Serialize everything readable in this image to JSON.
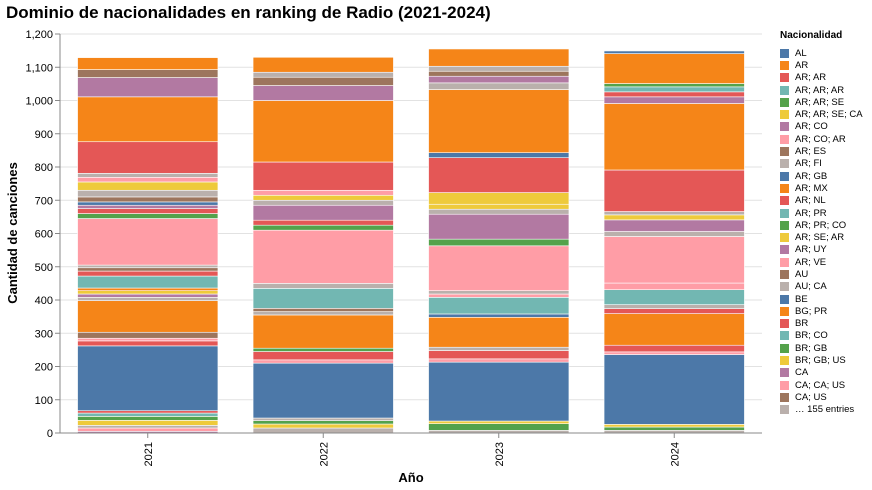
{
  "chart_data": {
    "type": "bar",
    "stacked": true,
    "title": "Dominio de nacionalidades en ranking de Radio (2021-2024)",
    "xlabel": "Año",
    "ylabel": "Cantidad de canciones",
    "ylim": [
      0,
      1200
    ],
    "yticks": [
      "0",
      "100",
      "200",
      "300",
      "400",
      "500",
      "600",
      "700",
      "800",
      "900",
      "1,000",
      "1,100",
      "1,200"
    ],
    "categories": [
      "2021",
      "2022",
      "2023",
      "2024"
    ],
    "grid": true,
    "legend": {
      "title": "Nacionalidad",
      "position": "right",
      "entries": [
        {
          "label": "AL",
          "color": "#4c78a8"
        },
        {
          "label": "AR",
          "color": "#f58518"
        },
        {
          "label": "AR; AR",
          "color": "#e45756"
        },
        {
          "label": "AR; AR; AR",
          "color": "#72b7b2"
        },
        {
          "label": "AR; AR; SE",
          "color": "#54a24b"
        },
        {
          "label": "AR; AR; SE; CA",
          "color": "#eeca3b"
        },
        {
          "label": "AR; CO",
          "color": "#b279a2"
        },
        {
          "label": "AR; CO; AR",
          "color": "#ff9da6"
        },
        {
          "label": "AR; ES",
          "color": "#9d755d"
        },
        {
          "label": "AR; FI",
          "color": "#bab0ac"
        },
        {
          "label": "AR; GB",
          "color": "#4c78a8"
        },
        {
          "label": "AR; MX",
          "color": "#f58518"
        },
        {
          "label": "AR; NL",
          "color": "#e45756"
        },
        {
          "label": "AR; PR",
          "color": "#72b7b2"
        },
        {
          "label": "AR; PR; CO",
          "color": "#54a24b"
        },
        {
          "label": "AR; SE; AR",
          "color": "#eeca3b"
        },
        {
          "label": "AR; UY",
          "color": "#b279a2"
        },
        {
          "label": "AR; VE",
          "color": "#ff9da6"
        },
        {
          "label": "AU",
          "color": "#9d755d"
        },
        {
          "label": "AU; CA",
          "color": "#bab0ac"
        },
        {
          "label": "BE",
          "color": "#4c78a8"
        },
        {
          "label": "BG; PR",
          "color": "#f58518"
        },
        {
          "label": "BR",
          "color": "#e45756"
        },
        {
          "label": "BR; CO",
          "color": "#72b7b2"
        },
        {
          "label": "BR; GB",
          "color": "#54a24b"
        },
        {
          "label": "BR; GB; US",
          "color": "#eeca3b"
        },
        {
          "label": "CA",
          "color": "#b279a2"
        },
        {
          "label": "CA; CA; US",
          "color": "#ff9da6"
        },
        {
          "label": "CA; US",
          "color": "#9d755d"
        },
        {
          "label": "… 155 entries",
          "color": "#bab0ac"
        }
      ]
    },
    "series_values_note": "stack segments bottom to top, values in songs",
    "stacks": [
      {
        "category": "2021",
        "segments": [
          {
            "value": 5,
            "color": "#b279a2"
          },
          {
            "value": 10,
            "color": "#ff9da6"
          },
          {
            "value": 8,
            "color": "#bab0ac"
          },
          {
            "value": 15,
            "color": "#eeca3b"
          },
          {
            "value": 12,
            "color": "#54a24b"
          },
          {
            "value": 10,
            "color": "#72b7b2"
          },
          {
            "value": 7,
            "color": "#e45756"
          },
          {
            "value": 195,
            "color": "#4c78a8"
          },
          {
            "value": 15,
            "color": "#e45756"
          },
          {
            "value": 8,
            "color": "#ff9da6"
          },
          {
            "value": 18,
            "color": "#9d755d"
          },
          {
            "value": 95,
            "color": "#f58518"
          },
          {
            "value": 10,
            "color": "#bab0ac"
          },
          {
            "value": 10,
            "color": "#b279a2"
          },
          {
            "value": 10,
            "color": "#eeca3b"
          },
          {
            "value": 8,
            "color": "#f58518"
          },
          {
            "value": 36,
            "color": "#72b7b2"
          },
          {
            "value": 15,
            "color": "#e45756"
          },
          {
            "value": 10,
            "color": "#9d755d"
          },
          {
            "value": 8,
            "color": "#bab0ac"
          },
          {
            "value": 140,
            "color": "#ff9da6"
          },
          {
            "value": 15,
            "color": "#54a24b"
          },
          {
            "value": 15,
            "color": "#e45756"
          },
          {
            "value": 10,
            "color": "#b279a2"
          },
          {
            "value": 10,
            "color": "#4c78a8"
          },
          {
            "value": 15,
            "color": "#9d755d"
          },
          {
            "value": 20,
            "color": "#bab0ac"
          },
          {
            "value": 25,
            "color": "#eeca3b"
          },
          {
            "value": 14,
            "color": "#ff9da6"
          },
          {
            "value": 12,
            "color": "#bab0ac"
          },
          {
            "value": 95,
            "color": "#e45756"
          },
          {
            "value": 135,
            "color": "#f58518"
          },
          {
            "value": 58,
            "color": "#b279a2"
          },
          {
            "value": 24,
            "color": "#9d755d"
          },
          {
            "value": 36,
            "color": "#f58518"
          }
        ]
      },
      {
        "category": "2022",
        "segments": [
          {
            "value": 15,
            "color": "#bab0ac"
          },
          {
            "value": 12,
            "color": "#eeca3b"
          },
          {
            "value": 10,
            "color": "#54a24b"
          },
          {
            "value": 8,
            "color": "#bab0ac"
          },
          {
            "value": 165,
            "color": "#4c78a8"
          },
          {
            "value": 10,
            "color": "#ff9da6"
          },
          {
            "value": 25,
            "color": "#e45756"
          },
          {
            "value": 10,
            "color": "#54a24b"
          },
          {
            "value": 100,
            "color": "#f58518"
          },
          {
            "value": 10,
            "color": "#bab0ac"
          },
          {
            "value": 10,
            "color": "#9d755d"
          },
          {
            "value": 60,
            "color": "#72b7b2"
          },
          {
            "value": 15,
            "color": "#bab0ac"
          },
          {
            "value": 160,
            "color": "#ff9da6"
          },
          {
            "value": 15,
            "color": "#54a24b"
          },
          {
            "value": 15,
            "color": "#e45756"
          },
          {
            "value": 45,
            "color": "#b279a2"
          },
          {
            "value": 15,
            "color": "#bab0ac"
          },
          {
            "value": 15,
            "color": "#eeca3b"
          },
          {
            "value": 15,
            "color": "#ff9da6"
          },
          {
            "value": 85,
            "color": "#e45756"
          },
          {
            "value": 185,
            "color": "#f58518"
          },
          {
            "value": 45,
            "color": "#b279a2"
          },
          {
            "value": 25,
            "color": "#9d755d"
          },
          {
            "value": 15,
            "color": "#bab0ac"
          },
          {
            "value": 45,
            "color": "#f58518"
          }
        ]
      },
      {
        "category": "2023",
        "segments": [
          {
            "value": 8,
            "color": "#bab0ac"
          },
          {
            "value": 20,
            "color": "#54a24b"
          },
          {
            "value": 8,
            "color": "#eeca3b"
          },
          {
            "value": 177,
            "color": "#4c78a8"
          },
          {
            "value": 10,
            "color": "#ff9da6"
          },
          {
            "value": 25,
            "color": "#e45756"
          },
          {
            "value": 10,
            "color": "#bab0ac"
          },
          {
            "value": 90,
            "color": "#f58518"
          },
          {
            "value": 10,
            "color": "#4c78a8"
          },
          {
            "value": 50,
            "color": "#72b7b2"
          },
          {
            "value": 10,
            "color": "#ff9da6"
          },
          {
            "value": 10,
            "color": "#bab0ac"
          },
          {
            "value": 135,
            "color": "#ff9da6"
          },
          {
            "value": 20,
            "color": "#54a24b"
          },
          {
            "value": 75,
            "color": "#b279a2"
          },
          {
            "value": 15,
            "color": "#bab0ac"
          },
          {
            "value": 15,
            "color": "#eeca3b"
          },
          {
            "value": 35,
            "color": "#eeca3b"
          },
          {
            "value": 105,
            "color": "#e45756"
          },
          {
            "value": 15,
            "color": "#4c78a8"
          },
          {
            "value": 190,
            "color": "#f58518"
          },
          {
            "value": 20,
            "color": "#bab0ac"
          },
          {
            "value": 20,
            "color": "#b279a2"
          },
          {
            "value": 15,
            "color": "#9d755d"
          },
          {
            "value": 15,
            "color": "#bab0ac"
          },
          {
            "value": 52,
            "color": "#f58518"
          }
        ]
      },
      {
        "category": "2024",
        "segments": [
          {
            "value": 8,
            "color": "#bab0ac"
          },
          {
            "value": 10,
            "color": "#54a24b"
          },
          {
            "value": 8,
            "color": "#eeca3b"
          },
          {
            "value": 210,
            "color": "#4c78a8"
          },
          {
            "value": 8,
            "color": "#ff9da6"
          },
          {
            "value": 20,
            "color": "#e45756"
          },
          {
            "value": 95,
            "color": "#f58518"
          },
          {
            "value": 15,
            "color": "#e45756"
          },
          {
            "value": 12,
            "color": "#bab0ac"
          },
          {
            "value": 45,
            "color": "#72b7b2"
          },
          {
            "value": 20,
            "color": "#ff9da6"
          },
          {
            "value": 140,
            "color": "#ff9da6"
          },
          {
            "value": 15,
            "color": "#bab0ac"
          },
          {
            "value": 35,
            "color": "#b279a2"
          },
          {
            "value": 15,
            "color": "#eeca3b"
          },
          {
            "value": 10,
            "color": "#bab0ac"
          },
          {
            "value": 125,
            "color": "#e45756"
          },
          {
            "value": 200,
            "color": "#f58518"
          },
          {
            "value": 20,
            "color": "#b279a2"
          },
          {
            "value": 15,
            "color": "#e45756"
          },
          {
            "value": 15,
            "color": "#72b7b2"
          },
          {
            "value": 10,
            "color": "#54a24b"
          },
          {
            "value": 90,
            "color": "#f58518"
          },
          {
            "value": 8,
            "color": "#4c78a8"
          }
        ]
      }
    ]
  }
}
